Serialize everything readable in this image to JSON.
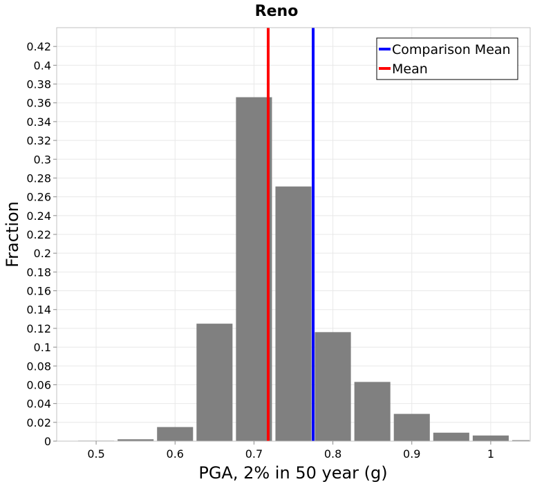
{
  "chart_data": {
    "type": "bar",
    "title": "Reno",
    "xlabel": "PGA, 2% in 50 year (g)",
    "ylabel": "Fraction",
    "xlim": [
      0.45,
      1.05
    ],
    "ylim": [
      0,
      0.44
    ],
    "x_ticks": [
      "0.5",
      "0.6",
      "0.7",
      "0.8",
      "0.9",
      "1"
    ],
    "y_ticks": [
      "0",
      "0.02",
      "0.04",
      "0.06",
      "0.08",
      "0.1",
      "0.12",
      "0.14",
      "0.16",
      "0.18",
      "0.2",
      "0.22",
      "0.24",
      "0.26",
      "0.28",
      "0.3",
      "0.32",
      "0.34",
      "0.36",
      "0.38",
      "0.4",
      "0.42"
    ],
    "grid": true,
    "bin_width": 0.05,
    "bins": [
      {
        "x": 0.5,
        "value": 0.0005
      },
      {
        "x": 0.55,
        "value": 0.002
      },
      {
        "x": 0.6,
        "value": 0.015
      },
      {
        "x": 0.65,
        "value": 0.125
      },
      {
        "x": 0.7,
        "value": 0.366
      },
      {
        "x": 0.75,
        "value": 0.271
      },
      {
        "x": 0.8,
        "value": 0.116
      },
      {
        "x": 0.85,
        "value": 0.063
      },
      {
        "x": 0.9,
        "value": 0.029
      },
      {
        "x": 0.95,
        "value": 0.009
      },
      {
        "x": 1.0,
        "value": 0.006
      },
      {
        "x": 1.05,
        "value": 0.001
      }
    ],
    "bar_color": "#808080",
    "reference_lines": [
      {
        "name": "Comparison Mean",
        "x": 0.775,
        "color": "#0000ff"
      },
      {
        "name": "Mean",
        "x": 0.718,
        "color": "#ff0000"
      }
    ],
    "legend_position": "top-right"
  }
}
